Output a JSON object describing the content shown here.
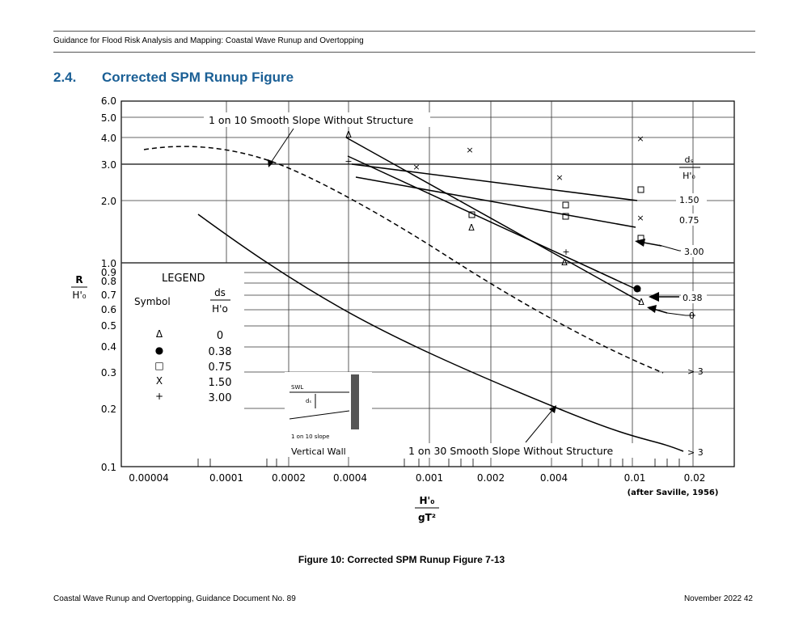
{
  "header": {
    "text": "Guidance for Flood Risk Analysis and Mapping: Coastal Wave Runup and Overtopping"
  },
  "section": {
    "number": "2.4.",
    "title": "Corrected SPM Runup Figure"
  },
  "figure": {
    "caption": "Figure 10: Corrected SPM Runup Figure 7-13",
    "y_ticks": [
      "6.0",
      "5.0",
      "4.0",
      "3.0",
      "2.0",
      "1.0",
      "0.9",
      "0.8",
      "0.7",
      "0.6",
      "0.5",
      "0.4",
      "0.3",
      "0.2",
      "0.1"
    ],
    "x_ticks": [
      "0.00004",
      "0.0001",
      "0.0002",
      "0.0004",
      "0.001",
      "0.002",
      "0.004",
      "0.01",
      "0.02"
    ],
    "y_label": {
      "numerator": "R",
      "denominator": "H'₀"
    },
    "x_label": {
      "numerator": "H'₀",
      "denominator": "gT²"
    },
    "source": "(after Saville, 1956)",
    "annotation_top": "1 on 10 Smooth Slope Without Structure",
    "annotation_bottom": "1 on 30 Smooth Slope Without Structure",
    "right_header": {
      "numerator": "dₛ",
      "denominator": "H'₀"
    },
    "right_labels": [
      "1.50",
      "0.75",
      "3.00",
      "0.38",
      "0",
      "> 3",
      "> 3"
    ],
    "legend": {
      "title": "LEGEND",
      "symbol_header": "Symbol",
      "ratio_header_num": "ds",
      "ratio_header_den": "H'o",
      "symbols": [
        "Δ",
        "●",
        "□",
        "X",
        "+"
      ],
      "values": [
        "0",
        "0.38",
        "0.75",
        "1.50",
        "3.00"
      ]
    },
    "inset": {
      "swl": "SWL",
      "ds": "dₛ",
      "slope": "1 on 10 slope",
      "title": "Vertical Wall"
    }
  },
  "footer": {
    "left": "Coastal Wave Runup and Overtopping, Guidance Document No. 89",
    "right": "November 2022  42"
  }
}
